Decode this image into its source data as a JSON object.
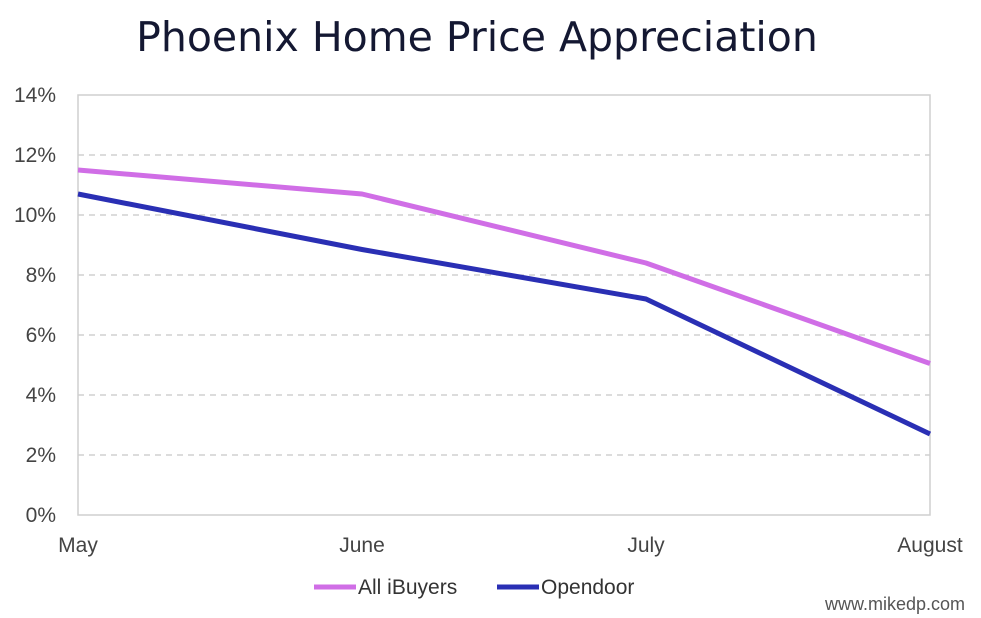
{
  "chart_data": {
    "type": "line",
    "title": "Phoenix Home Price Appreciation",
    "categories": [
      "May",
      "June",
      "July",
      "August"
    ],
    "series": [
      {
        "name": "All iBuyers",
        "values": [
          11.5,
          10.7,
          8.4,
          5.05
        ],
        "color": "#d06ee6"
      },
      {
        "name": "Opendoor",
        "values": [
          10.7,
          8.85,
          7.2,
          2.7
        ],
        "color": "#2a2fb4"
      }
    ],
    "yticks": [
      "0%",
      "2%",
      "4%",
      "6%",
      "8%",
      "10%",
      "12%",
      "14%"
    ],
    "ylim": [
      0,
      14
    ],
    "grid": true,
    "legend": "bottom"
  },
  "credit": "www.mikedp.com"
}
